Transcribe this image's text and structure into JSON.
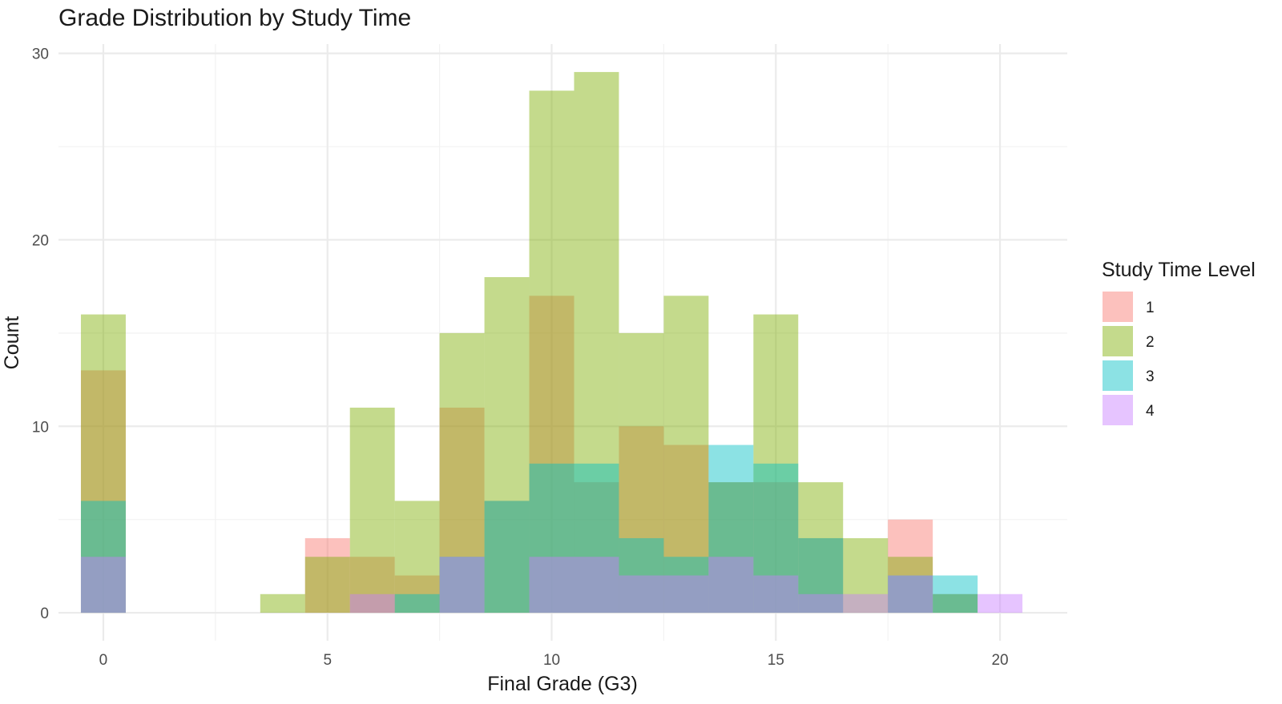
{
  "chart_data": {
    "type": "bar",
    "subtype": "overlaid histogram",
    "title": "Grade Distribution by Study Time",
    "xlabel": "Final Grade (G3)",
    "ylabel": "Count",
    "xlim": [
      -1,
      21.5
    ],
    "ylim": [
      -1.5,
      30.5
    ],
    "x_ticks": [
      0,
      5,
      10,
      15,
      20
    ],
    "y_ticks": [
      0,
      10,
      20,
      30
    ],
    "bin_width": 1,
    "bins": [
      0,
      1,
      2,
      3,
      4,
      5,
      6,
      7,
      8,
      9,
      10,
      11,
      12,
      13,
      14,
      15,
      16,
      17,
      18,
      19,
      20
    ],
    "grid": true,
    "legend": {
      "title": "Study Time Level",
      "position": "right"
    },
    "series": [
      {
        "name": "1",
        "color": "#F8766D",
        "values": [
          13,
          0,
          0,
          0,
          0,
          4,
          3,
          2,
          11,
          6,
          17,
          7,
          10,
          9,
          7,
          7,
          4,
          0,
          5,
          1,
          0
        ]
      },
      {
        "name": "2",
        "color": "#7CAE00",
        "values": [
          16,
          0,
          0,
          0,
          1,
          3,
          11,
          6,
          15,
          18,
          28,
          29,
          15,
          17,
          7,
          16,
          7,
          4,
          3,
          1,
          0
        ]
      },
      {
        "name": "3",
        "color": "#00BFC4",
        "values": [
          6,
          0,
          0,
          0,
          0,
          0,
          0,
          1,
          3,
          6,
          8,
          8,
          4,
          3,
          9,
          8,
          4,
          0,
          2,
          2,
          0
        ]
      },
      {
        "name": "4",
        "color": "#C77CFF",
        "values": [
          3,
          0,
          0,
          0,
          0,
          0,
          1,
          0,
          3,
          0,
          3,
          3,
          2,
          2,
          3,
          2,
          1,
          1,
          2,
          0,
          1
        ]
      }
    ]
  }
}
